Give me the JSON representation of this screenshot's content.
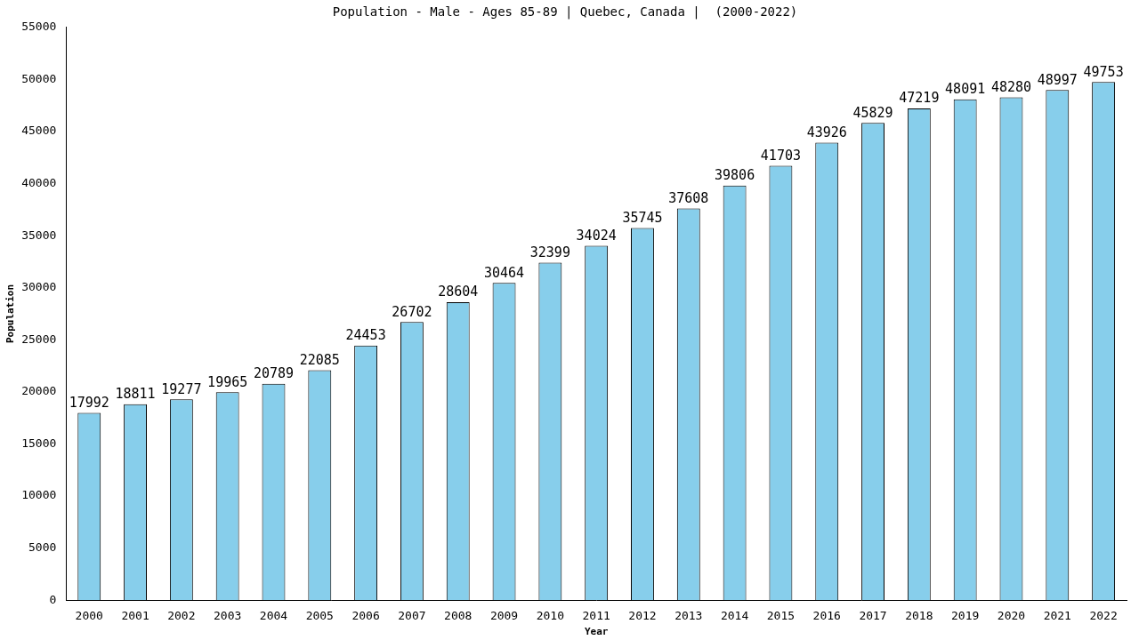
{
  "chart_data": {
    "type": "bar",
    "title": "Population - Male - Ages 85-89 | Quebec, Canada |  (2000-2022)",
    "x_label": "Year",
    "y_label": "Population",
    "categories": [
      "2000",
      "2001",
      "2002",
      "2003",
      "2004",
      "2005",
      "2006",
      "2007",
      "2008",
      "2009",
      "2010",
      "2011",
      "2012",
      "2013",
      "2014",
      "2015",
      "2016",
      "2017",
      "2018",
      "2019",
      "2020",
      "2021",
      "2022"
    ],
    "values": [
      17992,
      18811,
      19277,
      19965,
      20789,
      22085,
      24453,
      26702,
      28604,
      30464,
      32399,
      34024,
      35745,
      37608,
      39806,
      41703,
      43926,
      45829,
      47219,
      48091,
      48280,
      48997,
      49753
    ],
    "color": "#87ceeb",
    "ylim": [
      0,
      55000
    ],
    "yticks": [
      0,
      5000,
      10000,
      15000,
      20000,
      25000,
      30000,
      35000,
      40000,
      45000,
      50000,
      55000
    ],
    "grid": false,
    "data_labels": true
  }
}
